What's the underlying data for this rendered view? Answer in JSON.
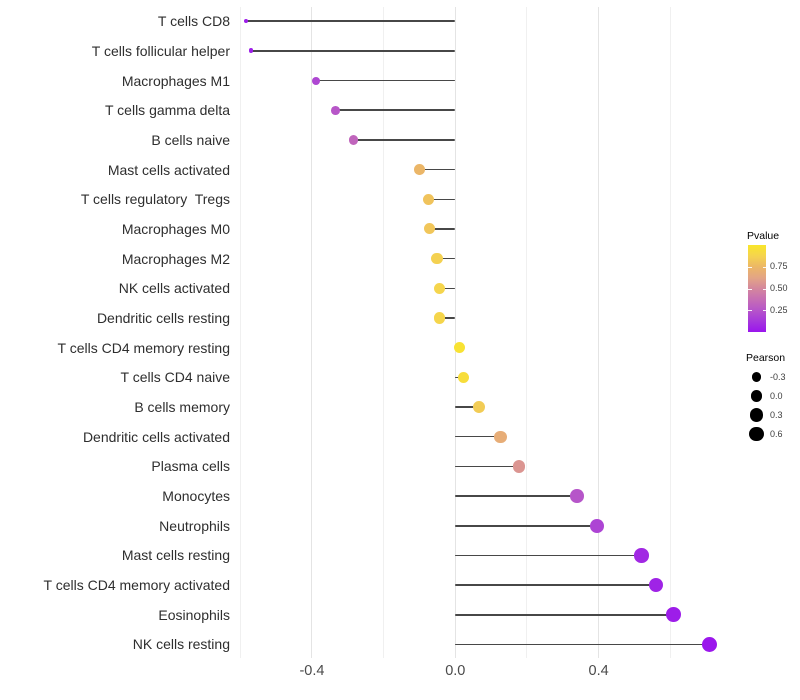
{
  "chart_data": {
    "type": "scatter",
    "subtype": "lollipop",
    "title": "",
    "xlabel": "",
    "ylabel": "",
    "x_axis": {
      "ticks": [
        -0.4,
        0.0,
        0.4
      ],
      "tick_labels": [
        "-0.4",
        "0.0",
        "0.4"
      ],
      "major_gridlines": [
        -0.4,
        0.0,
        0.4
      ],
      "minor_gridlines": [
        -0.6,
        -0.2,
        0.2,
        0.6
      ],
      "xlim": [
        -0.61,
        0.77
      ]
    },
    "points": [
      {
        "label": "T cells CD8",
        "pearson": -0.585,
        "pvalue": 0.03
      },
      {
        "label": "T cells follicular helper",
        "pearson": -0.57,
        "pvalue": 0.035
      },
      {
        "label": "Macrophages M1",
        "pearson": -0.39,
        "pvalue": 0.19
      },
      {
        "label": "T cells gamma delta",
        "pearson": -0.335,
        "pvalue": 0.255
      },
      {
        "label": "B cells naive",
        "pearson": -0.285,
        "pvalue": 0.33
      },
      {
        "label": "Mast cells activated",
        "pearson": -0.1,
        "pvalue": 0.74
      },
      {
        "label": "T cells regulatory  Tregs",
        "pearson": -0.075,
        "pvalue": 0.8
      },
      {
        "label": "Macrophages M0",
        "pearson": -0.072,
        "pvalue": 0.815
      },
      {
        "label": "Macrophages M2",
        "pearson": -0.051,
        "pvalue": 0.86
      },
      {
        "label": "NK cells activated",
        "pearson": -0.045,
        "pvalue": 0.88
      },
      {
        "label": "Dendritic cells resting",
        "pearson": -0.045,
        "pvalue": 0.885
      },
      {
        "label": "T cells CD4 memory resting",
        "pearson": 0.012,
        "pvalue": 0.97
      },
      {
        "label": "T cells CD4 naive",
        "pearson": 0.023,
        "pvalue": 0.94
      },
      {
        "label": "B cells memory",
        "pearson": 0.067,
        "pvalue": 0.84
      },
      {
        "label": "Dendritic cells activated",
        "pearson": 0.126,
        "pvalue": 0.68
      },
      {
        "label": "Plasma cells",
        "pearson": 0.178,
        "pvalue": 0.56
      },
      {
        "label": "Monocytes",
        "pearson": 0.34,
        "pvalue": 0.25
      },
      {
        "label": "Neutrophils",
        "pearson": 0.395,
        "pvalue": 0.18
      },
      {
        "label": "Mast cells resting",
        "pearson": 0.52,
        "pvalue": 0.07
      },
      {
        "label": "T cells CD4 memory activated",
        "pearson": 0.56,
        "pvalue": 0.05
      },
      {
        "label": "Eosinophils",
        "pearson": 0.61,
        "pvalue": 0.028
      },
      {
        "label": "NK cells resting",
        "pearson": 0.71,
        "pvalue": 0.008
      }
    ]
  },
  "legend_color": {
    "title": "Pvalue",
    "range": [
      0,
      1
    ],
    "tick_values": [
      0.75,
      0.5,
      0.25
    ],
    "tick_labels": [
      "0.75",
      "0.50",
      "0.25"
    ],
    "gradient_stops": [
      {
        "t": 0.0,
        "color": "#9a15ed"
      },
      {
        "t": 0.125,
        "color": "#a637dc"
      },
      {
        "t": 0.25,
        "color": "#b655c9"
      },
      {
        "t": 0.375,
        "color": "#c66eb4"
      },
      {
        "t": 0.5,
        "color": "#d4879d"
      },
      {
        "t": 0.625,
        "color": "#e3a585"
      },
      {
        "t": 0.75,
        "color": "#ecb766"
      },
      {
        "t": 0.875,
        "color": "#f5d44e"
      },
      {
        "t": 1.0,
        "color": "#f9e62a"
      }
    ]
  },
  "legend_size": {
    "title": "Pearson",
    "entries": [
      {
        "label": "-0.3",
        "value": -0.3
      },
      {
        "label": "0.0",
        "value": 0.0
      },
      {
        "label": "0.3",
        "value": 0.3
      },
      {
        "label": "0.6",
        "value": 0.6
      }
    ]
  },
  "style": {
    "stem_color": "#474747",
    "major_grid_color": "#e4e4e4",
    "minor_grid_color": "#f0f0f0"
  }
}
